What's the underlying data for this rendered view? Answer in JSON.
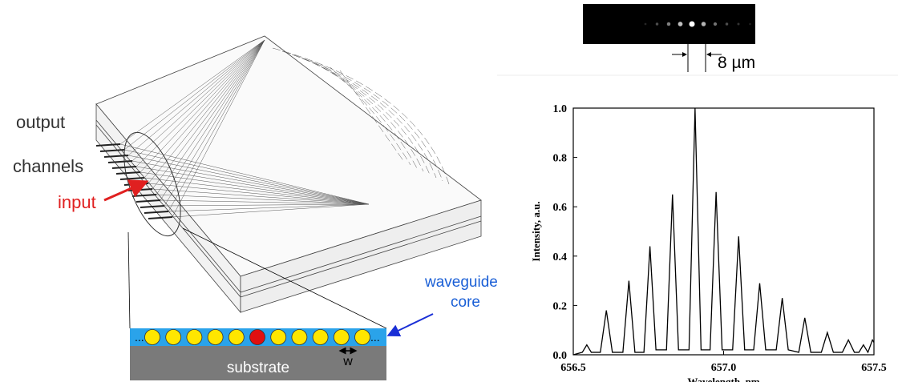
{
  "diagram": {
    "output_label": [
      "output",
      "channels"
    ],
    "input_label": "input",
    "core_label": [
      "waveguide",
      "core"
    ],
    "substrate_label": "substrate",
    "width_label": "w",
    "dots": [
      "...",
      "..."
    ],
    "spacing_label": "8 µm"
  },
  "chart_data": {
    "type": "line",
    "xlabel": "Wavelength, nm",
    "ylabel": "Intensity, a.u.",
    "color": "#000000",
    "x": [
      656.5,
      656.53,
      656.545,
      656.56,
      656.59,
      656.61,
      656.63,
      656.665,
      656.685,
      656.705,
      656.735,
      656.755,
      656.775,
      656.81,
      656.83,
      656.85,
      656.885,
      656.905,
      656.925,
      656.955,
      656.975,
      656.995,
      657.03,
      657.05,
      657.07,
      657.1,
      657.12,
      657.14,
      657.175,
      657.195,
      657.215,
      657.25,
      657.27,
      657.29,
      657.325,
      657.345,
      657.365,
      657.395,
      657.415,
      657.435,
      657.45,
      657.465,
      657.48,
      657.495,
      657.5
    ],
    "values": [
      0.0,
      0.01,
      0.04,
      0.01,
      0.01,
      0.18,
      0.01,
      0.01,
      0.3,
      0.01,
      0.01,
      0.44,
      0.02,
      0.02,
      0.65,
      0.02,
      0.02,
      1.0,
      0.02,
      0.02,
      0.66,
      0.02,
      0.02,
      0.48,
      0.02,
      0.02,
      0.29,
      0.02,
      0.02,
      0.23,
      0.02,
      0.01,
      0.15,
      0.01,
      0.01,
      0.09,
      0.01,
      0.01,
      0.06,
      0.01,
      0.01,
      0.04,
      0.01,
      0.06,
      0.05
    ],
    "xlim": [
      656.5,
      657.5
    ],
    "ylim": [
      0,
      1.0
    ],
    "xticks": [
      656.5,
      {
        "value": 657.0,
        "label": "657.0"
      },
      657.5
    ],
    "yticks": [
      {
        "value": 0,
        "label": "0.0"
      },
      0.2,
      0.4,
      0.6,
      0.8,
      {
        "value": 1.0,
        "label": "1.0"
      }
    ]
  }
}
